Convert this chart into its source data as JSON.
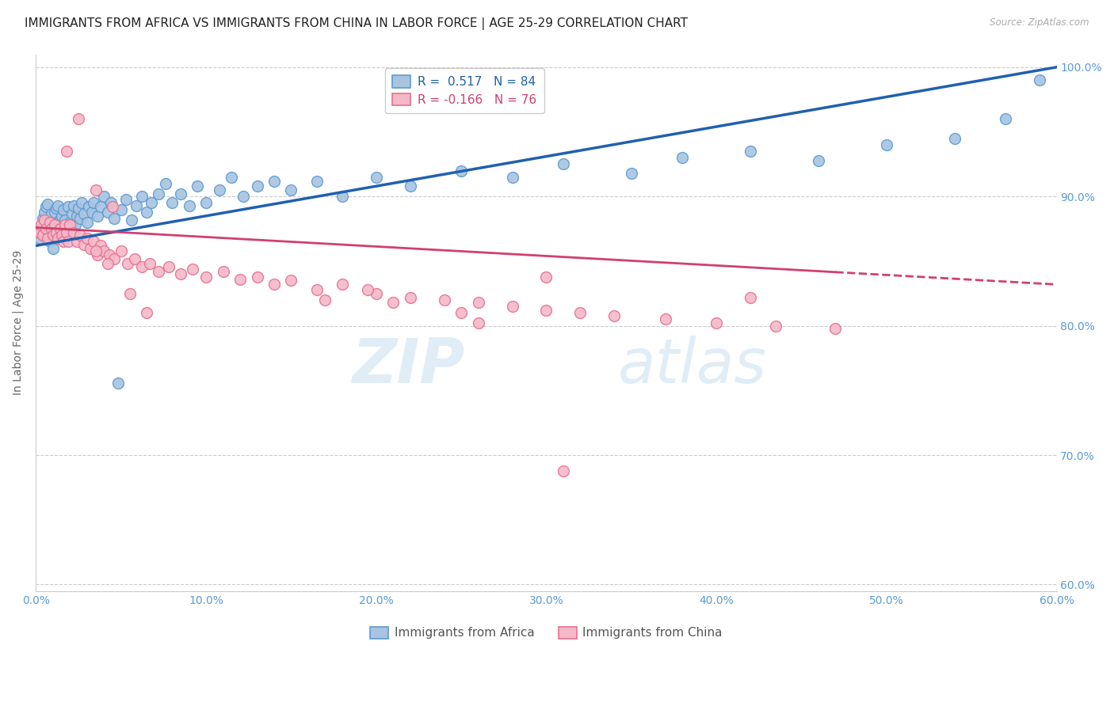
{
  "title": "IMMIGRANTS FROM AFRICA VS IMMIGRANTS FROM CHINA IN LABOR FORCE | AGE 25-29 CORRELATION CHART",
  "source": "Source: ZipAtlas.com",
  "ylabel": "In Labor Force | Age 25-29",
  "xlim": [
    0.0,
    0.6
  ],
  "ylim": [
    0.595,
    1.01
  ],
  "yticks": [
    0.6,
    0.7,
    0.8,
    0.9,
    1.0
  ],
  "ytick_labels": [
    "60.0%",
    "70.0%",
    "80.0%",
    "90.0%",
    "100.0%"
  ],
  "xticks": [
    0.0,
    0.1,
    0.2,
    0.3,
    0.4,
    0.5,
    0.6
  ],
  "xtick_labels": [
    "0.0%",
    "10.0%",
    "20.0%",
    "30.0%",
    "40.0%",
    "50.0%",
    "60.0%"
  ],
  "africa_color": "#a8c4e0",
  "africa_edge_color": "#5b9bd5",
  "china_color": "#f4b8c8",
  "china_edge_color": "#e87090",
  "trend_africa_color": "#2060b0",
  "trend_china_color": "#d04070",
  "legend_africa": "Immigrants from Africa",
  "legend_china": "Immigrants from China",
  "R_africa": 0.517,
  "N_africa": 84,
  "R_china": -0.166,
  "N_china": 76,
  "africa_x": [
    0.002,
    0.003,
    0.004,
    0.005,
    0.005,
    0.006,
    0.006,
    0.007,
    0.007,
    0.008,
    0.008,
    0.009,
    0.009,
    0.01,
    0.01,
    0.011,
    0.011,
    0.012,
    0.012,
    0.013,
    0.013,
    0.014,
    0.015,
    0.015,
    0.016,
    0.016,
    0.017,
    0.018,
    0.019,
    0.02,
    0.021,
    0.022,
    0.023,
    0.024,
    0.025,
    0.026,
    0.027,
    0.028,
    0.03,
    0.031,
    0.033,
    0.034,
    0.036,
    0.038,
    0.04,
    0.042,
    0.044,
    0.046,
    0.048,
    0.05,
    0.053,
    0.056,
    0.059,
    0.062,
    0.065,
    0.068,
    0.072,
    0.076,
    0.08,
    0.085,
    0.09,
    0.095,
    0.1,
    0.108,
    0.115,
    0.122,
    0.13,
    0.14,
    0.15,
    0.165,
    0.18,
    0.2,
    0.22,
    0.25,
    0.28,
    0.31,
    0.35,
    0.38,
    0.42,
    0.46,
    0.5,
    0.54,
    0.57,
    0.59
  ],
  "africa_y": [
    0.868,
    0.875,
    0.883,
    0.872,
    0.888,
    0.876,
    0.892,
    0.878,
    0.894,
    0.865,
    0.88,
    0.87,
    0.887,
    0.86,
    0.876,
    0.872,
    0.888,
    0.875,
    0.891,
    0.878,
    0.893,
    0.882,
    0.87,
    0.885,
    0.875,
    0.89,
    0.882,
    0.876,
    0.892,
    0.88,
    0.887,
    0.893,
    0.878,
    0.885,
    0.891,
    0.883,
    0.895,
    0.887,
    0.88,
    0.892,
    0.888,
    0.895,
    0.885,
    0.892,
    0.9,
    0.888,
    0.895,
    0.883,
    0.756,
    0.89,
    0.898,
    0.882,
    0.893,
    0.9,
    0.888,
    0.895,
    0.902,
    0.91,
    0.895,
    0.902,
    0.893,
    0.908,
    0.895,
    0.905,
    0.915,
    0.9,
    0.908,
    0.912,
    0.905,
    0.912,
    0.9,
    0.915,
    0.908,
    0.92,
    0.915,
    0.925,
    0.918,
    0.93,
    0.935,
    0.928,
    0.94,
    0.945,
    0.96,
    0.99
  ],
  "china_x": [
    0.002,
    0.003,
    0.004,
    0.005,
    0.006,
    0.007,
    0.008,
    0.009,
    0.01,
    0.011,
    0.012,
    0.013,
    0.014,
    0.015,
    0.016,
    0.017,
    0.018,
    0.019,
    0.02,
    0.022,
    0.024,
    0.026,
    0.028,
    0.03,
    0.032,
    0.034,
    0.036,
    0.038,
    0.04,
    0.043,
    0.046,
    0.05,
    0.054,
    0.058,
    0.062,
    0.067,
    0.072,
    0.078,
    0.085,
    0.092,
    0.1,
    0.11,
    0.12,
    0.13,
    0.14,
    0.15,
    0.165,
    0.18,
    0.2,
    0.22,
    0.24,
    0.26,
    0.28,
    0.3,
    0.32,
    0.34,
    0.37,
    0.4,
    0.435,
    0.47,
    0.025,
    0.018,
    0.035,
    0.045,
    0.065,
    0.035,
    0.042,
    0.055,
    0.17,
    0.195,
    0.21,
    0.25,
    0.3,
    0.42,
    0.31,
    0.26
  ],
  "china_y": [
    0.872,
    0.878,
    0.87,
    0.882,
    0.875,
    0.868,
    0.88,
    0.875,
    0.87,
    0.878,
    0.872,
    0.868,
    0.875,
    0.87,
    0.865,
    0.878,
    0.872,
    0.865,
    0.878,
    0.872,
    0.865,
    0.87,
    0.863,
    0.868,
    0.86,
    0.865,
    0.855,
    0.862,
    0.858,
    0.855,
    0.852,
    0.858,
    0.848,
    0.852,
    0.846,
    0.848,
    0.842,
    0.846,
    0.84,
    0.844,
    0.838,
    0.842,
    0.836,
    0.838,
    0.832,
    0.835,
    0.828,
    0.832,
    0.825,
    0.822,
    0.82,
    0.818,
    0.815,
    0.812,
    0.81,
    0.808,
    0.805,
    0.802,
    0.8,
    0.798,
    0.96,
    0.935,
    0.905,
    0.892,
    0.81,
    0.858,
    0.848,
    0.825,
    0.82,
    0.828,
    0.818,
    0.81,
    0.838,
    0.822,
    0.688,
    0.802
  ],
  "watermark_zip": "ZIP",
  "watermark_atlas": "atlas",
  "background_color": "#ffffff",
  "grid_color": "#cccccc",
  "axis_label_color": "#5b9bd5",
  "title_fontsize": 11,
  "axis_fontsize": 10,
  "tick_fontsize": 10
}
